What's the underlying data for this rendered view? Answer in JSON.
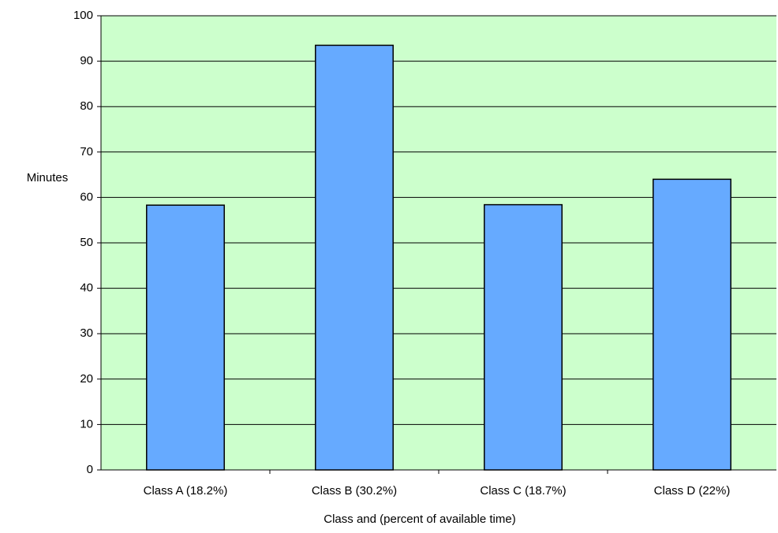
{
  "chart_data": {
    "type": "bar",
    "title": "",
    "xlabel": "Class and (percent of available time)",
    "ylabel": "Minutes",
    "categories": [
      "Class A (18.2%)",
      "Class B (30.2%)",
      "Class C (18.7%)",
      "Class D (22%)"
    ],
    "values": [
      58.3,
      93.5,
      58.4,
      64.0
    ],
    "ylim": [
      0,
      100
    ],
    "yticks": [
      "0",
      "10",
      "20",
      "30",
      "40",
      "50",
      "60",
      "70",
      "80",
      "90",
      "100"
    ],
    "grid": true,
    "legend": "none",
    "colors": {
      "plot_background": "#ccffcc",
      "bar_fill": "#66aaff",
      "bar_stroke": "#000000",
      "gridline": "#000000"
    }
  }
}
